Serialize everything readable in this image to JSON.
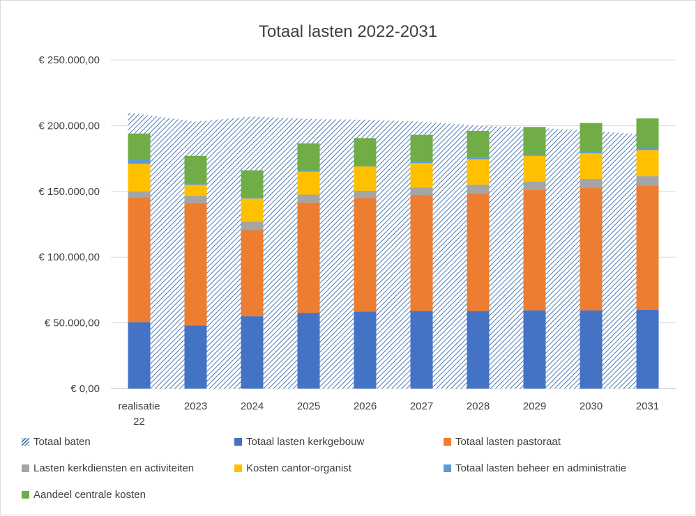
{
  "chart_data": {
    "type": "bar",
    "stacked": true,
    "title": "Totaal lasten 2022-2031",
    "categories": [
      "realisatie 22",
      "2023",
      "2024",
      "2025",
      "2026",
      "2027",
      "2028",
      "2029",
      "2030",
      "2031"
    ],
    "category_lines": [
      [
        "realisatie",
        "22"
      ],
      [
        "2023"
      ],
      [
        "2024"
      ],
      [
        "2025"
      ],
      [
        "2026"
      ],
      [
        "2027"
      ],
      [
        "2028"
      ],
      [
        "2029"
      ],
      [
        "2030"
      ],
      [
        "2031"
      ]
    ],
    "ylim": [
      0,
      250000
    ],
    "y_ticks": [
      {
        "value": 0,
        "label": "€ 0,00"
      },
      {
        "value": 50000,
        "label": "€ 50.000,00"
      },
      {
        "value": 100000,
        "label": "€ 100.000,00"
      },
      {
        "value": 150000,
        "label": "€ 150.000,00"
      },
      {
        "value": 200000,
        "label": "€ 200.000,00"
      },
      {
        "value": 250000,
        "label": "€ 250.000,00"
      }
    ],
    "grid": true,
    "legend_position": "bottom",
    "area_series": {
      "name": "Totaal baten",
      "type": "area",
      "color": "#4a78b4",
      "values": [
        210000,
        203000,
        207000,
        205000,
        204500,
        203000,
        200000,
        198500,
        196000,
        193000
      ]
    },
    "series": [
      {
        "name": "Totaal lasten kerkgebouw",
        "color": "#4472c4",
        "values": [
          50500,
          48000,
          55000,
          57500,
          58500,
          59000,
          59000,
          59500,
          59500,
          60000
        ]
      },
      {
        "name": "Totaal lasten pastoraat",
        "color": "#ed7d31",
        "values": [
          95000,
          93000,
          65500,
          84000,
          86500,
          88000,
          89500,
          91500,
          93000,
          94500
        ]
      },
      {
        "name": "Lasten kerkdiensten en activiteiten",
        "color": "#a5a5a5",
        "values": [
          4500,
          5500,
          6500,
          6000,
          5500,
          6000,
          6500,
          6500,
          7000,
          7000
        ]
      },
      {
        "name": "Kosten cantor-organist",
        "color": "#ffc000",
        "values": [
          21000,
          8500,
          17500,
          17500,
          18500,
          18500,
          19500,
          19500,
          19500,
          20000
        ]
      },
      {
        "name": "Totaal lasten beheer en administratie",
        "color": "#5b9bd5",
        "values": [
          3000,
          1000,
          500,
          1000,
          1000,
          1000,
          1000,
          1000,
          1000,
          1500
        ]
      },
      {
        "name": "Aandeel centrale kosten",
        "color": "#70ad47",
        "values": [
          20000,
          21000,
          21000,
          20500,
          20500,
          20500,
          20500,
          21000,
          22000,
          22500
        ]
      }
    ],
    "legend_order": [
      "Totaal baten",
      "Totaal lasten kerkgebouw",
      "Totaal lasten pastoraat",
      "Lasten kerkdiensten en activiteiten",
      "Kosten cantor-organist",
      "Totaal lasten beheer en administratie",
      "Aandeel centrale kosten"
    ]
  }
}
